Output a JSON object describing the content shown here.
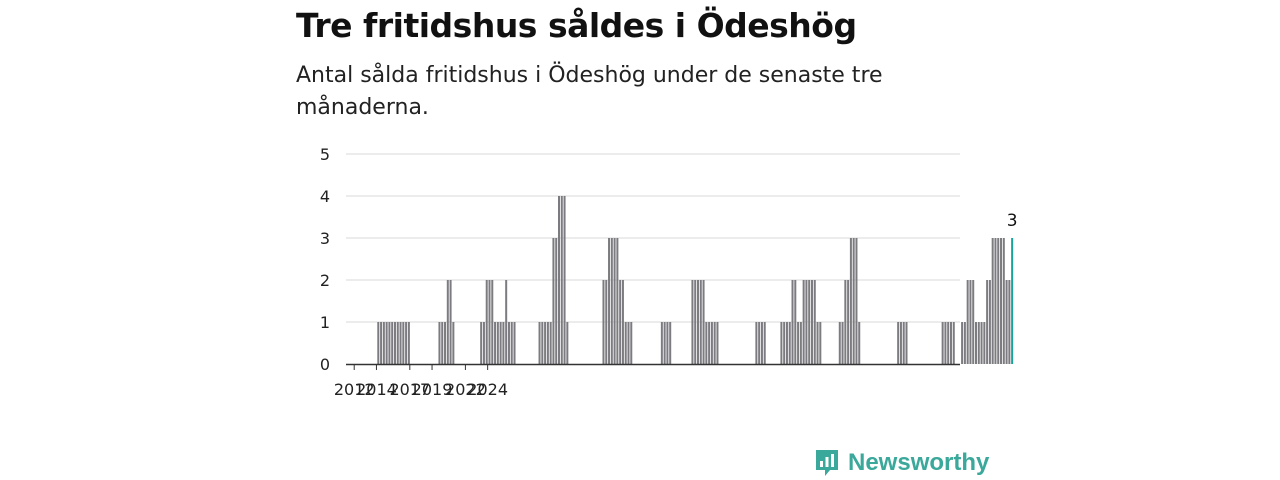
{
  "title": "Tre fritidshus såldes i Ödeshög",
  "subtitle": "Antal sålda fritidshus i Ödeshög under de senaste tre månaderna.",
  "brand": {
    "name": "Newsworthy",
    "icon": "newsworthy-logo-icon",
    "color": "#3aa89a"
  },
  "colors": {
    "bar": "#7b7b80",
    "highlight": "#17a398",
    "grid": "#d9d9d9",
    "axis": "#333333"
  },
  "chart_data": {
    "type": "bar",
    "title": "Tre fritidshus såldes i Ödeshög",
    "subtitle": "Antal sålda fritidshus i Ödeshög under de senaste tre månaderna.",
    "xlabel": "",
    "ylabel": "",
    "ylim": [
      0,
      5
    ],
    "yticks": [
      "0",
      "1",
      "2",
      "3",
      "4",
      "5"
    ],
    "xticks": [
      "2012",
      "2014",
      "2017",
      "2019",
      "2022",
      "2024"
    ],
    "grid": true,
    "start_period": "2011-09",
    "period_months": 3,
    "values": [
      0,
      0,
      0,
      0,
      0,
      0,
      0,
      0,
      0,
      0,
      1,
      1,
      1,
      1,
      1,
      1,
      1,
      1,
      1,
      1,
      1,
      1,
      0,
      0,
      0,
      0,
      0,
      0,
      0,
      0,
      0,
      0,
      1,
      1,
      1,
      2,
      2,
      1,
      0,
      0,
      0,
      0,
      0,
      0,
      0,
      0,
      0,
      1,
      1,
      2,
      2,
      2,
      1,
      1,
      1,
      1,
      2,
      1,
      1,
      1,
      0,
      0,
      0,
      0,
      0,
      0,
      0,
      0,
      1,
      1,
      1,
      1,
      1,
      3,
      3,
      4,
      4,
      4,
      1,
      0,
      0,
      0,
      0,
      0,
      0,
      0,
      0,
      0,
      0,
      0,
      0,
      2,
      2,
      3,
      3,
      3,
      3,
      2,
      2,
      1,
      1,
      1,
      0,
      0,
      0,
      0,
      0,
      0,
      0,
      0,
      0,
      0,
      1,
      1,
      1,
      1,
      0,
      0,
      0,
      0,
      0,
      0,
      0,
      2,
      2,
      2,
      2,
      2,
      1,
      1,
      1,
      1,
      1,
      0,
      0,
      0,
      0,
      0,
      0,
      0,
      0,
      0,
      0,
      0,
      0,
      0,
      1,
      1,
      1,
      1,
      0,
      0,
      0,
      0,
      0,
      1,
      1,
      1,
      1,
      2,
      2,
      1,
      1,
      2,
      2,
      2,
      2,
      2,
      1,
      1,
      0,
      0,
      0,
      0,
      0,
      0,
      1,
      1,
      2,
      2,
      3,
      3,
      3,
      1,
      0,
      0,
      0,
      0,
      0,
      0,
      0,
      0,
      0,
      0,
      0,
      0,
      0,
      1,
      1,
      1,
      1,
      0,
      0,
      0,
      0,
      0,
      0,
      0,
      0,
      0,
      0,
      0,
      0,
      1,
      1,
      1,
      1,
      1,
      0,
      0,
      1,
      1,
      2,
      2,
      2,
      1,
      1,
      1,
      1,
      2,
      2,
      3,
      3,
      3,
      3,
      3,
      2,
      2,
      3
    ],
    "highlight_value_label": "3"
  }
}
